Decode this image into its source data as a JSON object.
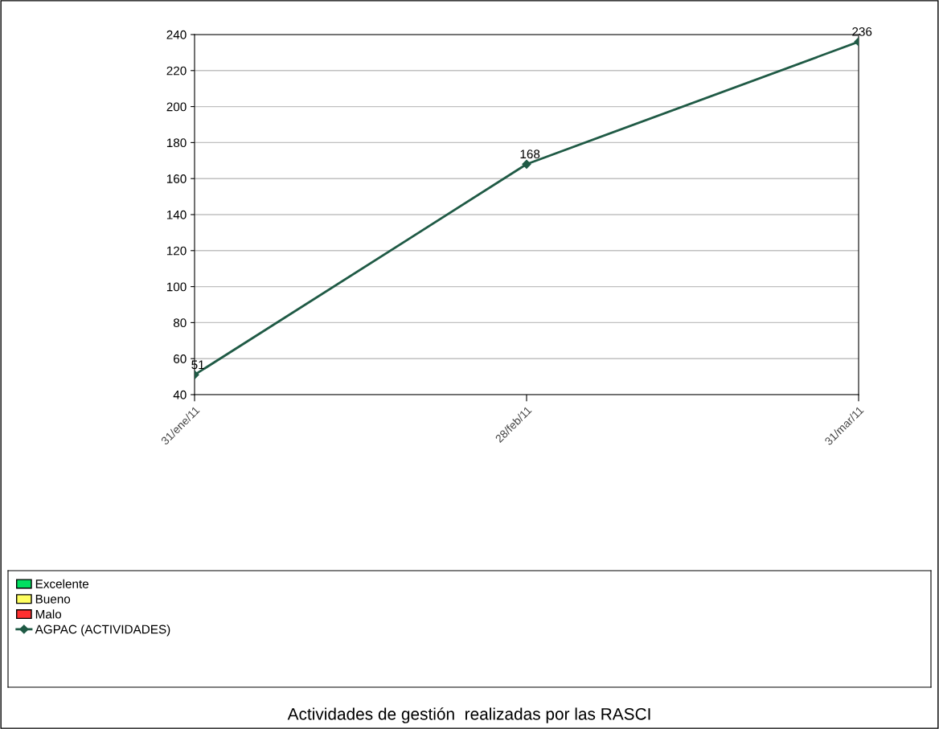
{
  "chart_data": {
    "type": "line",
    "title": "Actividades de gestión  realizadas por las RASCI",
    "categories": [
      "31/ene/11",
      "28/feb/11",
      "31/mar/11"
    ],
    "series": [
      {
        "name": "Excelente",
        "type": "bar",
        "color": "#00e060",
        "values": [
          null,
          null,
          null
        ]
      },
      {
        "name": "Bueno",
        "type": "bar",
        "color": "#ffff60",
        "values": [
          null,
          null,
          null
        ]
      },
      {
        "name": "Malo",
        "type": "bar",
        "color": "#ff3030",
        "values": [
          null,
          null,
          null
        ]
      },
      {
        "name": "AGPAC (ACTIVIDADES)",
        "color": "#1f5a45",
        "values": [
          51,
          168,
          236
        ]
      }
    ],
    "ylim": [
      40,
      240
    ],
    "yticks": [
      40,
      60,
      80,
      100,
      120,
      140,
      160,
      180,
      200,
      220,
      240
    ],
    "grid": "y",
    "legend": "bottom",
    "marker": "diamond",
    "line_style": "solid",
    "data_labels": true
  }
}
